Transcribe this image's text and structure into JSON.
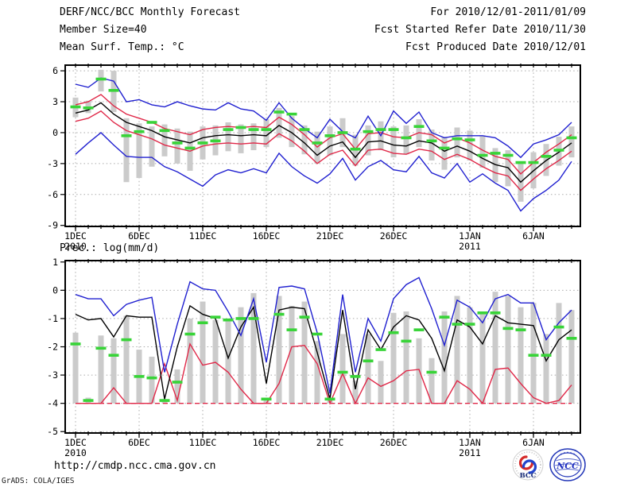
{
  "header": {
    "title": "DERF/NCC/BCC Monthly Forecast",
    "member_size": "Member Size=40",
    "temp_label": "Mean Surf. Temp.: °C",
    "for_range": "For 2010/12/01-2011/01/09",
    "refer_date": "Fcst Started Refer Date 2010/11/30",
    "produced_date": "Fcst Produced Date 2010/12/01"
  },
  "footer": {
    "url": "http://cmdp.ncc.cma.gov.cn",
    "credit": "GrADS: COLA/IGES",
    "bcc_label": "BCC",
    "ncc_label": "NCC"
  },
  "colors": {
    "blue": "#2020d0",
    "red": "#e02848",
    "green": "#38d438",
    "bar_gray": "#cbcbcb",
    "grid": "#aaaaaa"
  },
  "chart_data": [
    {
      "type": "line",
      "title": "Mean Surf. Temp.: °C",
      "xlabel": "",
      "ylabel": "",
      "ylim": [
        -9.1,
        6.55
      ],
      "yticks": [
        6,
        3,
        0,
        -3,
        -6,
        -9
      ],
      "grid": "dotted",
      "legend": false,
      "xticks": [
        {
          "day": 1,
          "label": "1DEC",
          "year": "2010"
        },
        {
          "day": 6,
          "label": "6DEC"
        },
        {
          "day": 11,
          "label": "11DEC"
        },
        {
          "day": 16,
          "label": "16DEC"
        },
        {
          "day": 21,
          "label": "21DEC"
        },
        {
          "day": 26,
          "label": "26DEC"
        },
        {
          "day": 32,
          "label": "1JAN",
          "year": "2011"
        },
        {
          "day": 37,
          "label": "6JAN"
        }
      ],
      "categories": [
        "1DEC",
        "2DEC",
        "3DEC",
        "4DEC",
        "5DEC",
        "6DEC",
        "7DEC",
        "8DEC",
        "9DEC",
        "10DEC",
        "11DEC",
        "12DEC",
        "13DEC",
        "14DEC",
        "15DEC",
        "16DEC",
        "17DEC",
        "18DEC",
        "19DEC",
        "20DEC",
        "21DEC",
        "22DEC",
        "23DEC",
        "24DEC",
        "25DEC",
        "26DEC",
        "27DEC",
        "28DEC",
        "29DEC",
        "30DEC",
        "31DEC",
        "1JAN",
        "2JAN",
        "3JAN",
        "4JAN",
        "5JAN",
        "6JAN",
        "7JAN",
        "8JAN",
        "9JAN"
      ],
      "series": [
        {
          "name": "ensemble-spread-bar",
          "kind": "bar",
          "color": "#cbcbcb",
          "low": [
            1.5,
            1.9,
            4.0,
            2.0,
            -4.8,
            -4.4,
            -3.3,
            -2.3,
            -3.0,
            -3.7,
            -2.6,
            -2.2,
            -1.8,
            -2.0,
            -1.7,
            -1.4,
            -0.5,
            -1.4,
            -2.1,
            -3.0,
            -2.2,
            -1.4,
            -3.2,
            -2.2,
            -1.7,
            -2.4,
            -2.1,
            -1.4,
            -2.7,
            -3.6,
            -2.4,
            -2.7,
            -3.4,
            -4.8,
            -5.2,
            -6.7,
            -5.4,
            -4.2,
            -3.2,
            -2.4
          ],
          "high": [
            3.4,
            3.1,
            6.1,
            6.0,
            1.4,
            0.9,
            0.6,
            0.8,
            0.4,
            0.1,
            0.6,
            0.7,
            1.0,
            0.8,
            0.9,
            1.3,
            2.4,
            1.6,
            0.7,
            0.1,
            0.6,
            1.4,
            -0.2,
            0.7,
            1.1,
            0.6,
            0.7,
            1.3,
            0.3,
            -0.4,
            0.5,
            0.2,
            -0.3,
            -1.5,
            -1.7,
            -2.8,
            -1.9,
            -1.1,
            -0.4,
            0.6
          ]
        },
        {
          "name": "red-line-upper",
          "kind": "line",
          "color": "#e02848",
          "values": [
            2.7,
            3.0,
            3.7,
            2.6,
            1.8,
            1.4,
            1.0,
            0.4,
            0.1,
            -0.2,
            0.3,
            0.5,
            0.6,
            0.5,
            0.6,
            0.5,
            1.5,
            0.8,
            -0.2,
            -1.4,
            -0.5,
            -0.1,
            -1.6,
            -0.1,
            0.0,
            -0.4,
            -0.5,
            0.0,
            -0.2,
            -1.0,
            -0.5,
            -1.0,
            -1.7,
            -2.3,
            -2.6,
            -4.0,
            -2.9,
            -1.9,
            -1.1,
            -0.2
          ]
        },
        {
          "name": "red-line-lower",
          "kind": "line",
          "color": "#e02848",
          "values": [
            1.1,
            1.4,
            2.1,
            1.0,
            0.2,
            -0.2,
            -0.6,
            -1.2,
            -1.5,
            -1.8,
            -1.3,
            -1.1,
            -1.0,
            -1.1,
            -1.0,
            -1.1,
            -0.1,
            -0.8,
            -1.8,
            -3.0,
            -2.1,
            -1.7,
            -3.2,
            -1.7,
            -1.6,
            -2.0,
            -2.1,
            -1.6,
            -1.8,
            -2.6,
            -2.1,
            -2.6,
            -3.3,
            -3.9,
            -4.2,
            -5.6,
            -4.5,
            -3.5,
            -2.7,
            -1.8
          ]
        },
        {
          "name": "ensemble-mean-line",
          "kind": "line",
          "color": "#000000",
          "values": [
            1.9,
            2.2,
            2.9,
            1.8,
            1.0,
            0.6,
            0.2,
            -0.4,
            -0.7,
            -1.0,
            -0.5,
            -0.3,
            -0.2,
            -0.3,
            -0.2,
            -0.3,
            0.7,
            0.0,
            -1.0,
            -2.2,
            -1.3,
            -0.9,
            -2.4,
            -0.9,
            -0.8,
            -1.2,
            -1.3,
            -0.8,
            -1.0,
            -1.8,
            -1.3,
            -1.8,
            -2.5,
            -3.1,
            -3.4,
            -4.8,
            -3.7,
            -2.7,
            -1.9,
            -1.0
          ]
        },
        {
          "name": "blue-line-upper",
          "kind": "line",
          "color": "#2020d0",
          "values": [
            4.7,
            4.4,
            5.3,
            5.0,
            3.0,
            3.2,
            2.7,
            2.5,
            3.0,
            2.6,
            2.3,
            2.2,
            2.9,
            2.3,
            2.1,
            1.2,
            2.9,
            1.4,
            0.4,
            -0.5,
            1.3,
            0.1,
            -0.5,
            1.6,
            -0.3,
            2.1,
            0.9,
            2.0,
            0.0,
            -0.5,
            -0.3,
            -0.3,
            -0.3,
            -0.5,
            -1.3,
            -2.4,
            -1.1,
            -0.7,
            -0.2,
            1.0
          ]
        },
        {
          "name": "blue-line-lower",
          "kind": "line",
          "color": "#2020d0",
          "values": [
            -2.1,
            -1.0,
            0.0,
            -1.2,
            -2.3,
            -2.4,
            -2.4,
            -3.3,
            -3.8,
            -4.5,
            -5.2,
            -4.1,
            -3.6,
            -3.9,
            -3.5,
            -3.9,
            -2.0,
            -3.3,
            -4.2,
            -4.9,
            -4.0,
            -2.5,
            -4.6,
            -3.3,
            -2.7,
            -3.6,
            -3.8,
            -2.3,
            -3.9,
            -4.4,
            -3.0,
            -4.8,
            -4.0,
            -4.9,
            -5.6,
            -7.6,
            -6.4,
            -5.6,
            -4.6,
            -2.8
          ]
        },
        {
          "name": "observation-dash",
          "kind": "dash",
          "color": "#38d438",
          "values": [
            2.5,
            2.4,
            5.2,
            4.1,
            -0.3,
            0.1,
            1.0,
            0.2,
            -1.0,
            -1.5,
            -1.0,
            -0.8,
            0.3,
            0.5,
            0.3,
            0.3,
            2.0,
            1.8,
            0.3,
            -1.0,
            -0.3,
            0.0,
            -1.6,
            0.1,
            0.3,
            0.3,
            -0.5,
            0.6,
            -0.8,
            -1.5,
            -0.6,
            -0.7,
            -2.2,
            -2.0,
            -2.2,
            -2.9,
            -2.9,
            -2.3,
            -1.7,
            -0.5
          ]
        }
      ]
    },
    {
      "type": "line",
      "title": "Prec.: log(mm/d)",
      "xlabel": "",
      "ylabel": "",
      "ylim": [
        -5.05,
        1.05
      ],
      "yticks": [
        1,
        0,
        -1,
        -2,
        -3,
        -4,
        -5
      ],
      "grid": "dotted",
      "legend": false,
      "xticks": [
        {
          "day": 1,
          "label": "1DEC",
          "year": "2010"
        },
        {
          "day": 6,
          "label": "6DEC"
        },
        {
          "day": 11,
          "label": "11DEC"
        },
        {
          "day": 16,
          "label": "16DEC"
        },
        {
          "day": 21,
          "label": "21DEC"
        },
        {
          "day": 26,
          "label": "26DEC"
        },
        {
          "day": 32,
          "label": "1JAN",
          "year": "2011"
        },
        {
          "day": 37,
          "label": "6JAN"
        }
      ],
      "categories": [
        "1DEC",
        "2DEC",
        "3DEC",
        "4DEC",
        "5DEC",
        "6DEC",
        "7DEC",
        "8DEC",
        "9DEC",
        "10DEC",
        "11DEC",
        "12DEC",
        "13DEC",
        "14DEC",
        "15DEC",
        "16DEC",
        "17DEC",
        "18DEC",
        "19DEC",
        "20DEC",
        "21DEC",
        "22DEC",
        "23DEC",
        "24DEC",
        "25DEC",
        "26DEC",
        "27DEC",
        "28DEC",
        "29DEC",
        "30DEC",
        "31DEC",
        "1JAN",
        "2JAN",
        "3JAN",
        "4JAN",
        "5JAN",
        "6JAN",
        "7JAN",
        "8JAN",
        "9JAN"
      ],
      "series": [
        {
          "name": "ensemble-spread-bar",
          "kind": "bar",
          "color": "#cbcbcb",
          "low": -4,
          "high": [
            -1.5,
            -3.8,
            -1.6,
            -1.7,
            -0.9,
            -2.1,
            -2.35,
            -3.85,
            -2.8,
            -1.0,
            -0.4,
            -1.05,
            -1.0,
            -0.6,
            -0.1,
            -3.8,
            -0.2,
            -0.55,
            -0.4,
            -1.8,
            -3.9,
            -1.55,
            -3.2,
            -1.55,
            -2.5,
            -0.8,
            -0.75,
            -1.7,
            -2.4,
            -0.75,
            -0.2,
            -0.6,
            -0.85,
            -0.05,
            -0.2,
            -0.6,
            -0.45,
            -1.55,
            -0.45,
            -0.7
          ]
        },
        {
          "name": "red-floor-line",
          "kind": "line",
          "color": "#e02848",
          "dash": "6 4",
          "values": -4
        },
        {
          "name": "red-line",
          "kind": "line",
          "color": "#e02848",
          "values": [
            -4,
            -4,
            -4,
            -3.45,
            -4,
            -4,
            -4,
            -2.6,
            -3.9,
            -1.9,
            -2.65,
            -2.55,
            -2.9,
            -3.5,
            -4,
            -4,
            -3.3,
            -2.0,
            -1.95,
            -2.6,
            -4,
            -2.95,
            -4,
            -3.1,
            -3.4,
            -3.2,
            -2.85,
            -2.8,
            -4,
            -4,
            -3.2,
            -3.5,
            -4,
            -2.8,
            -2.75,
            -3.3,
            -3.8,
            -4,
            -3.9,
            -3.35
          ]
        },
        {
          "name": "ensemble-mean-line",
          "kind": "line",
          "color": "#000000",
          "values": [
            -0.85,
            -1.05,
            -1.0,
            -1.65,
            -0.9,
            -0.95,
            -0.95,
            -3.85,
            -2.0,
            -0.55,
            -0.85,
            -1.0,
            -2.4,
            -1.3,
            -0.6,
            -3.3,
            -0.7,
            -0.6,
            -0.65,
            -2.2,
            -3.85,
            -0.7,
            -3.5,
            -1.4,
            -2.1,
            -1.3,
            -0.9,
            -1.05,
            -1.7,
            -2.85,
            -1.05,
            -1.3,
            -1.9,
            -0.9,
            -1.15,
            -1.2,
            -1.25,
            -2.5,
            -1.75,
            -1.4
          ]
        },
        {
          "name": "blue-line",
          "kind": "line",
          "color": "#2020d0",
          "values": [
            -0.15,
            -0.3,
            -0.3,
            -0.9,
            -0.5,
            -0.35,
            -0.25,
            -2.9,
            -1.2,
            0.3,
            0.05,
            0.0,
            -0.75,
            -1.6,
            -0.3,
            -2.55,
            0.1,
            0.15,
            0.05,
            -1.5,
            -3.65,
            -0.15,
            -2.9,
            -1.0,
            -1.8,
            -0.3,
            0.2,
            0.45,
            -0.65,
            -1.95,
            -0.35,
            -0.6,
            -1.15,
            -0.3,
            -0.15,
            -0.45,
            -0.45,
            -1.75,
            -1.15,
            -0.7
          ]
        },
        {
          "name": "observation-dash",
          "kind": "dash",
          "color": "#38d438",
          "values": [
            -1.9,
            -3.9,
            -2.05,
            -2.3,
            -1.75,
            -3.05,
            -3.1,
            -3.9,
            -3.25,
            -1.55,
            -1.15,
            -0.95,
            -1.05,
            -1.0,
            -1.0,
            -3.85,
            -0.85,
            -1.4,
            -0.95,
            -1.55,
            -3.85,
            -2.9,
            -3.05,
            -2.5,
            -2.1,
            -1.5,
            -1.8,
            -1.4,
            -2.9,
            -0.95,
            -1.2,
            -1.2,
            -0.8,
            -0.8,
            -1.35,
            -1.4,
            -2.3,
            -2.3,
            -1.3,
            -1.7
          ]
        }
      ]
    }
  ]
}
